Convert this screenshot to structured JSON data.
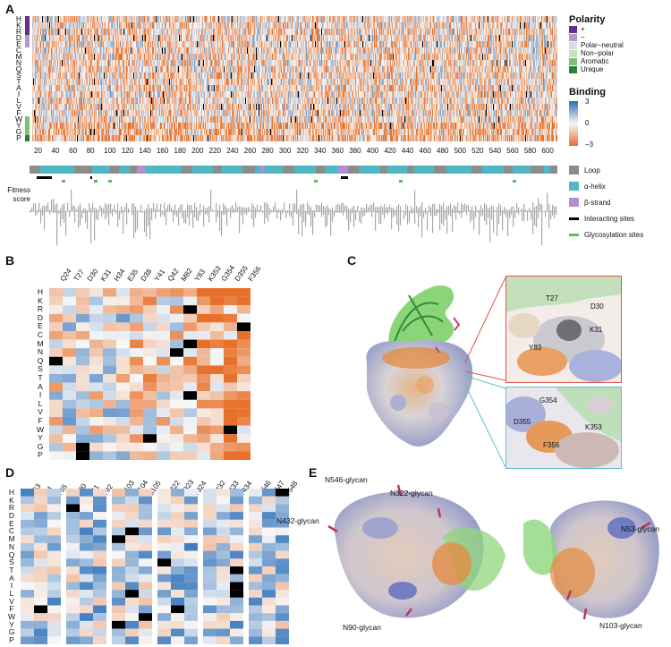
{
  "panels": {
    "A": "A",
    "B": "B",
    "C": "C",
    "D": "D",
    "E": "E"
  },
  "amino_acids": [
    "H",
    "K",
    "R",
    "D",
    "E",
    "C",
    "M",
    "N",
    "Q",
    "S",
    "T",
    "A",
    "I",
    "L",
    "V",
    "F",
    "W",
    "Y",
    "G",
    "P"
  ],
  "panel_a": {
    "x_ticks": [
      "20",
      "40",
      "60",
      "80",
      "100",
      "120",
      "140",
      "160",
      "180",
      "200",
      "220",
      "240",
      "260",
      "280",
      "300",
      "320",
      "340",
      "360",
      "380",
      "400",
      "420",
      "440",
      "460",
      "480",
      "500",
      "520",
      "540",
      "560",
      "580",
      "600"
    ],
    "polarity_legend": {
      "title": "Polarity",
      "items": [
        {
          "label": "+",
          "color": "#6a2c86"
        },
        {
          "label": "−",
          "color": "#b39ac9"
        },
        {
          "label": "Polar−neutral",
          "color": "#dcdcdc"
        },
        {
          "label": "Non−polar",
          "color": "#c6e3c1"
        },
        {
          "label": "Aromatic",
          "color": "#7ec27a"
        },
        {
          "label": "Unique",
          "color": "#2e7d3e"
        }
      ]
    },
    "binding_legend": {
      "title": "Binding",
      "ticks": [
        "3",
        "0",
        "−3"
      ]
    },
    "structure_legend": [
      {
        "label": "Loop",
        "color": "#8c8c8c"
      },
      {
        "label": "α-helix",
        "color": "#4fb8c2"
      },
      {
        "label": "β-strand",
        "color": "#b48fd0"
      },
      {
        "label": "Interacting sites",
        "color": "#000000"
      },
      {
        "label": "Glycosylation sites",
        "color": "#5bbd5b"
      }
    ],
    "fitness_label_1": "Fitness",
    "fitness_label_2": "score"
  },
  "panel_b": {
    "columns": [
      "Q24",
      "T27",
      "D30",
      "K31",
      "H34",
      "E35",
      "D38",
      "Y41",
      "Q42",
      "M82",
      "Y83",
      "K353",
      "G354",
      "D355",
      "F356"
    ]
  },
  "panel_c": {
    "top_labels": [
      "T27",
      "D30",
      "K31",
      "Y83"
    ],
    "bottom_labels": [
      "G354",
      "D355",
      "K353",
      "F356"
    ]
  },
  "panel_d": {
    "columns": [
      "N53",
      "I54",
      "T55",
      "N90",
      "L91",
      "T92",
      "N103",
      "G104",
      "S105",
      "N322",
      "M323",
      "T324",
      "N432",
      "E433",
      "T434",
      "N546",
      "S547",
      "T548"
    ]
  },
  "panel_e": {
    "labels": [
      "N546-glycan",
      "N322-glycan",
      "N432-glycan",
      "N90-glycan",
      "N53-glycan",
      "N103-glycan"
    ]
  },
  "colors": {
    "positive": "#2c6fb8",
    "negative": "#e8702a",
    "neutral": "#f7f7f7",
    "missing": "#000000"
  }
}
